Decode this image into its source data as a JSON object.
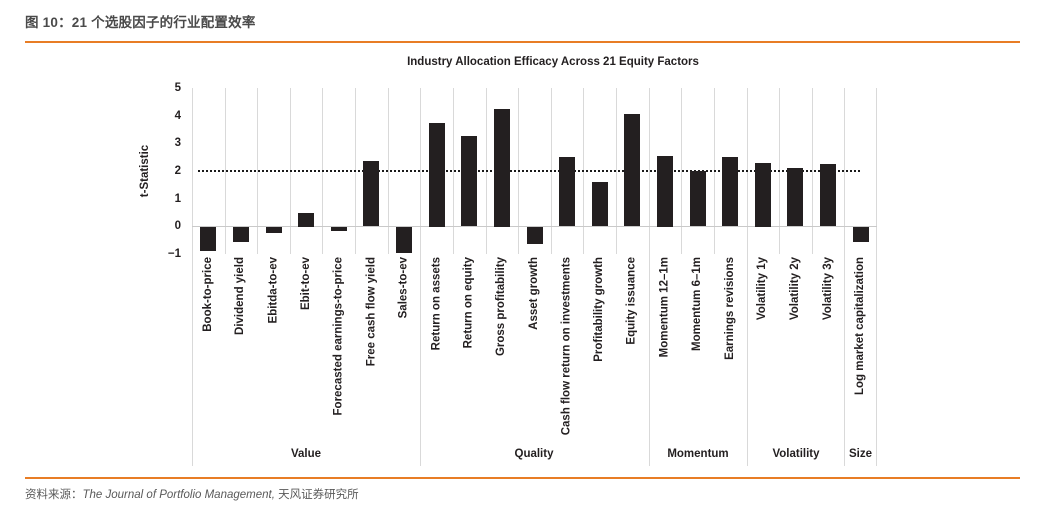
{
  "header": {
    "title": "图 10：21 个选股因子的行业配置效率"
  },
  "footer": {
    "source_label": "资料来源：",
    "source_italic": "The Journal of Portfolio Management,",
    "source_suffix": " 天风证券研究所"
  },
  "colors": {
    "accent_orange": "#E87D25",
    "bar": "#231F20",
    "gridline": "#D9D9D9",
    "zero_line": "#C9C9C9",
    "reference_line": "#1A1A1A",
    "header_text": "#4A4A4A",
    "footer_text": "#595959"
  },
  "chart_data": {
    "type": "bar",
    "title": "Industry Allocation Efficacy Across 21 Equity Factors",
    "xlabel": "",
    "ylabel": "t-Statistic",
    "ylim": [
      -1,
      5
    ],
    "ytick_labels": [
      "5",
      "4",
      "3",
      "2",
      "1",
      "0",
      "−1"
    ],
    "reference_line_y": 2,
    "grid": "vertical-only",
    "legend": "none",
    "categories": [
      "Book-to-price",
      "Dividend yield",
      "Ebitda-to-ev",
      "Ebit-to-ev",
      "Forecasted earnings-to-price",
      "Free cash flow yield",
      "Sales-to-ev",
      "Return on assets",
      "Return on equity",
      "Gross profitability",
      "Asset growth",
      "Cash flow return on investments",
      "Profitability growth",
      "Equity issuance",
      "Momentum 12–1m",
      "Momentum 6–1m",
      "Earnings revisions",
      "Volatility 1y",
      "Volatility 2y",
      "Volatility 3y",
      "Log market capitalization"
    ],
    "values": [
      -0.85,
      -0.55,
      -0.2,
      0.5,
      -0.15,
      2.35,
      -0.95,
      3.75,
      3.25,
      4.25,
      -0.6,
      2.5,
      1.6,
      4.05,
      2.55,
      2.0,
      2.5,
      2.3,
      2.1,
      2.25,
      -0.55
    ],
    "groups": [
      {
        "label": "Value",
        "count": 7
      },
      {
        "label": "Quality",
        "count": 7
      },
      {
        "label": "Momentum",
        "count": 3
      },
      {
        "label": "Volatility",
        "count": 3
      },
      {
        "label": "Size",
        "count": 1
      }
    ]
  }
}
